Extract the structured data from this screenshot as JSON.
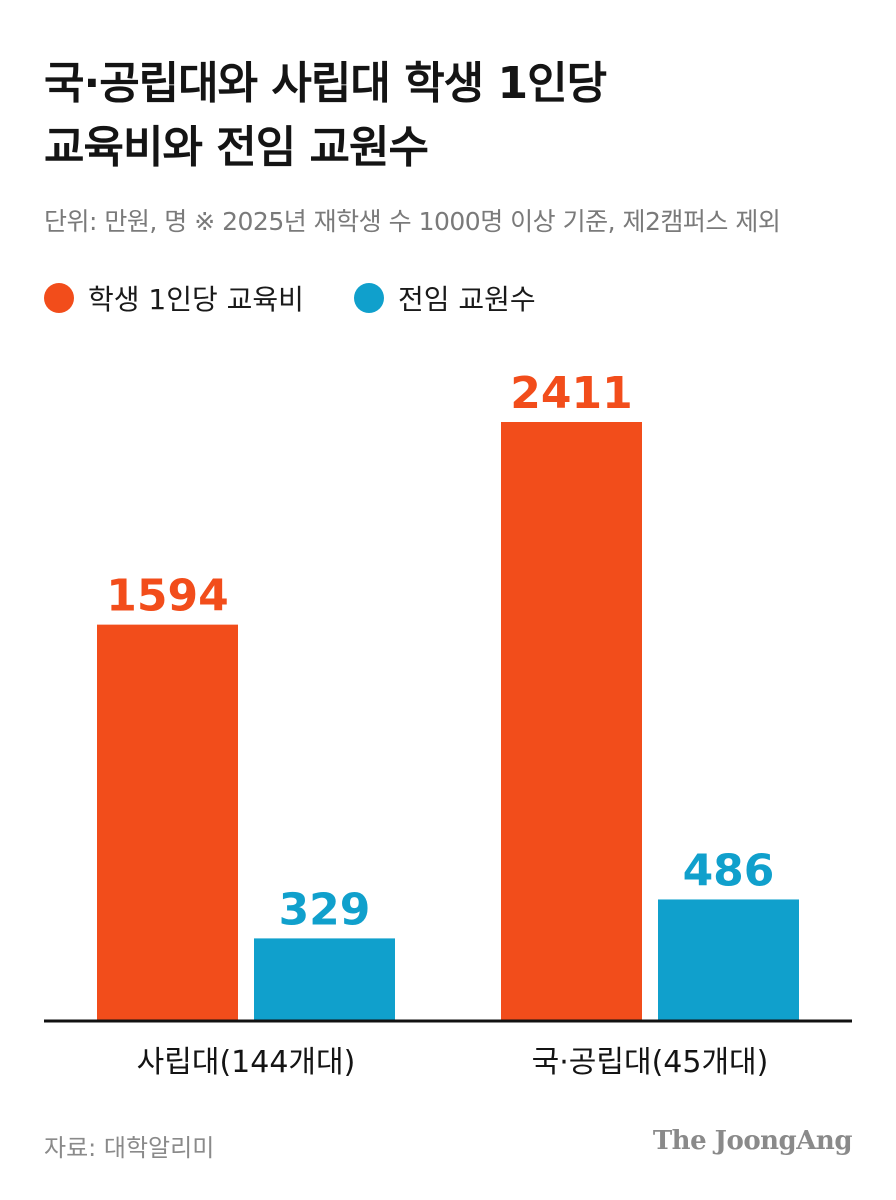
{
  "title_lines": [
    "국·공립대와 사립대 학생 1인당",
    "교육비와 전임 교원수"
  ],
  "subtitle": "단위: 만원, 명  ※ 2025년 재학생 수 1000명 이상 기준, 제2캠퍼스 제외",
  "legend": [
    {
      "label": "학생 1인당 교육비",
      "color": "#f24d1b"
    },
    {
      "label": "전임 교원수",
      "color": "#10a0cc"
    }
  ],
  "source": "자료: 대학알리미",
  "brand": "The JoongAng",
  "chart_data": {
    "type": "bar",
    "categories": [
      "사립대(144개대)",
      "국·공립대(45개대)"
    ],
    "series": [
      {
        "name": "학생 1인당 교육비",
        "color": "#f24d1b",
        "values": [
          1594,
          2411
        ]
      },
      {
        "name": "전임 교원수",
        "color": "#10a0cc",
        "values": [
          329,
          486
        ]
      }
    ],
    "data_labels": true,
    "grid": false,
    "legend_position": "top-left"
  }
}
